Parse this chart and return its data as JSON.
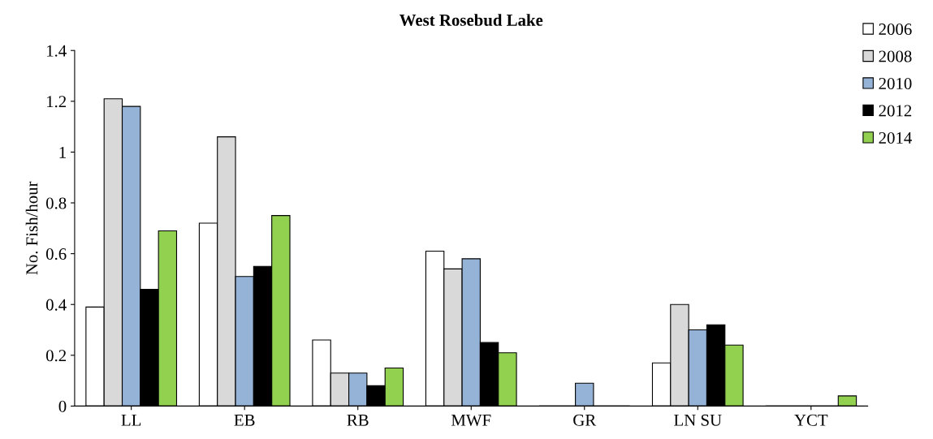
{
  "chart_data": {
    "type": "bar",
    "title": "West Rosebud Lake",
    "ylabel": "No. Fish/hour",
    "categories": [
      "LL",
      "EB",
      "RB",
      "MWF",
      "GR",
      "LN SU",
      "YCT"
    ],
    "series": [
      {
        "name": "2006",
        "color": "#ffffff",
        "values": [
          0.39,
          0.72,
          0.26,
          0.61,
          0,
          0.17,
          0
        ]
      },
      {
        "name": "2008",
        "color": "#d9d9d9",
        "values": [
          1.21,
          1.06,
          0.13,
          0.54,
          0,
          0.4,
          0
        ]
      },
      {
        "name": "2010",
        "color": "#95b3d7",
        "values": [
          1.18,
          0.51,
          0.13,
          0.58,
          0.09,
          0.3,
          0
        ]
      },
      {
        "name": "2012",
        "color": "#000000",
        "values": [
          0.46,
          0.55,
          0.08,
          0.25,
          0,
          0.32,
          0
        ]
      },
      {
        "name": "2014",
        "color": "#92d050",
        "values": [
          0.69,
          0.75,
          0.15,
          0.21,
          0,
          0.24,
          0.04
        ]
      }
    ],
    "ylim": [
      0,
      1.4
    ],
    "yticks": [
      0,
      0.2,
      0.4,
      0.6,
      0.8,
      1,
      1.2,
      1.4
    ],
    "grid": false,
    "legend": "top right"
  }
}
